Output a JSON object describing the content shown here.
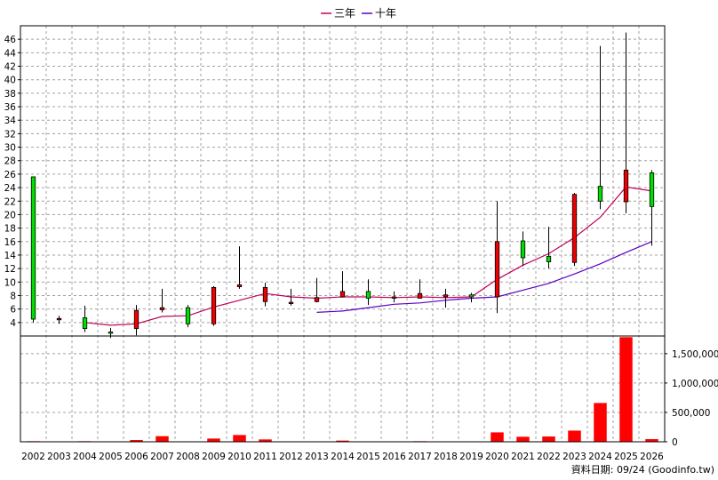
{
  "chart_data": [
    {
      "type": "candlestick",
      "legend": [
        {
          "name": "三年",
          "color": "#c0005a"
        },
        {
          "name": "十年",
          "color": "#5a00c0"
        }
      ],
      "legend_placement": "top-center",
      "x": [
        "2002",
        "2003",
        "2004",
        "2005",
        "2006",
        "2007",
        "2008",
        "2009",
        "2010",
        "2011",
        "2012",
        "2013",
        "2014",
        "2015",
        "2016",
        "2017",
        "2018",
        "2019",
        "2020",
        "2021",
        "2022",
        "2023",
        "2024",
        "2025",
        "2026"
      ],
      "ohlc": [
        {
          "open": 4.5,
          "high": 25.6,
          "low": 4.0,
          "close": 25.6
        },
        {
          "open": 4.6,
          "high": 5.0,
          "low": 3.8,
          "close": 4.4
        },
        {
          "open": 3.1,
          "high": 6.5,
          "low": 2.6,
          "close": 4.7
        },
        {
          "open": 2.6,
          "high": 3.2,
          "low": 1.7,
          "close": 2.6
        },
        {
          "open": 5.8,
          "high": 6.6,
          "low": 2.1,
          "close": 3.1
        },
        {
          "open": 6.2,
          "high": 9.0,
          "low": 5.5,
          "close": 5.9
        },
        {
          "open": 3.8,
          "high": 6.6,
          "low": 3.3,
          "close": 6.2
        },
        {
          "open": 9.2,
          "high": 9.4,
          "low": 3.5,
          "close": 3.8
        },
        {
          "open": 9.6,
          "high": 15.3,
          "low": 9.0,
          "close": 9.3
        },
        {
          "open": 9.2,
          "high": 9.9,
          "low": 6.4,
          "close": 7.1
        },
        {
          "open": 7.0,
          "high": 9.0,
          "low": 6.5,
          "close": 6.9
        },
        {
          "open": 7.7,
          "high": 10.6,
          "low": 7.0,
          "close": 7.1
        },
        {
          "open": 8.6,
          "high": 11.6,
          "low": 7.7,
          "close": 7.8
        },
        {
          "open": 7.6,
          "high": 10.4,
          "low": 6.6,
          "close": 8.6
        },
        {
          "open": 7.8,
          "high": 8.6,
          "low": 7.0,
          "close": 7.6
        },
        {
          "open": 8.3,
          "high": 10.4,
          "low": 7.6,
          "close": 7.6
        },
        {
          "open": 8.1,
          "high": 9.0,
          "low": 6.2,
          "close": 7.8
        },
        {
          "open": 7.8,
          "high": 8.4,
          "low": 7.0,
          "close": 8.1
        },
        {
          "open": 16.0,
          "high": 22.0,
          "low": 5.4,
          "close": 7.8
        },
        {
          "open": 13.6,
          "high": 17.5,
          "low": 12.4,
          "close": 16.1
        },
        {
          "open": 13.0,
          "high": 18.2,
          "low": 12.0,
          "close": 13.8
        },
        {
          "open": 23.0,
          "high": 23.2,
          "low": 12.4,
          "close": 12.9
        },
        {
          "open": 22.0,
          "high": 45.0,
          "low": 20.8,
          "close": 24.2
        },
        {
          "open": 26.6,
          "high": 47.0,
          "low": 20.2,
          "close": 21.9
        },
        {
          "open": 21.2,
          "high": 26.6,
          "low": 15.4,
          "close": 26.2
        }
      ],
      "series": [
        {
          "name": "三年",
          "values": [
            null,
            null,
            4.0,
            3.6,
            3.8,
            4.9,
            5.0,
            6.3,
            7.3,
            8.3,
            7.8,
            7.6,
            7.8,
            7.8,
            7.7,
            7.8,
            7.7,
            7.8,
            10.4,
            12.5,
            14.2,
            16.6,
            19.6,
            24.1,
            23.5
          ]
        },
        {
          "name": "十年",
          "values": [
            null,
            null,
            null,
            null,
            null,
            null,
            null,
            null,
            null,
            null,
            null,
            5.5,
            5.7,
            6.2,
            6.7,
            6.9,
            7.3,
            7.6,
            7.8,
            8.8,
            9.8,
            11.2,
            12.7,
            14.4,
            16.0
          ]
        }
      ],
      "ylim": [
        2,
        48
      ],
      "yticks": [
        "4",
        "6",
        "8",
        "10",
        "12",
        "14",
        "16",
        "18",
        "20",
        "22",
        "24",
        "26",
        "28",
        "30",
        "32",
        "34",
        "36",
        "38",
        "40",
        "42",
        "44",
        "46"
      ],
      "grid": true
    },
    {
      "type": "bar",
      "x": [
        "2002",
        "2003",
        "2004",
        "2005",
        "2006",
        "2007",
        "2008",
        "2009",
        "2010",
        "2011",
        "2012",
        "2013",
        "2014",
        "2015",
        "2016",
        "2017",
        "2018",
        "2019",
        "2020",
        "2021",
        "2022",
        "2023",
        "2024",
        "2025",
        "2026"
      ],
      "values": [
        10000,
        5000,
        10000,
        4000,
        30000,
        95000,
        5000,
        55000,
        115000,
        40000,
        5000,
        5000,
        20000,
        5000,
        5000,
        10000,
        5000,
        5000,
        160000,
        85000,
        90000,
        190000,
        660000,
        1780000,
        45000
      ],
      "color": "#ff0000",
      "ylim": [
        0,
        1800000
      ],
      "yticks": [
        "0",
        "500,000",
        "1,000,000",
        "1,500,000"
      ],
      "grid": true
    }
  ],
  "footer": "資料日期: 09/24  (Goodinfo.tw)"
}
